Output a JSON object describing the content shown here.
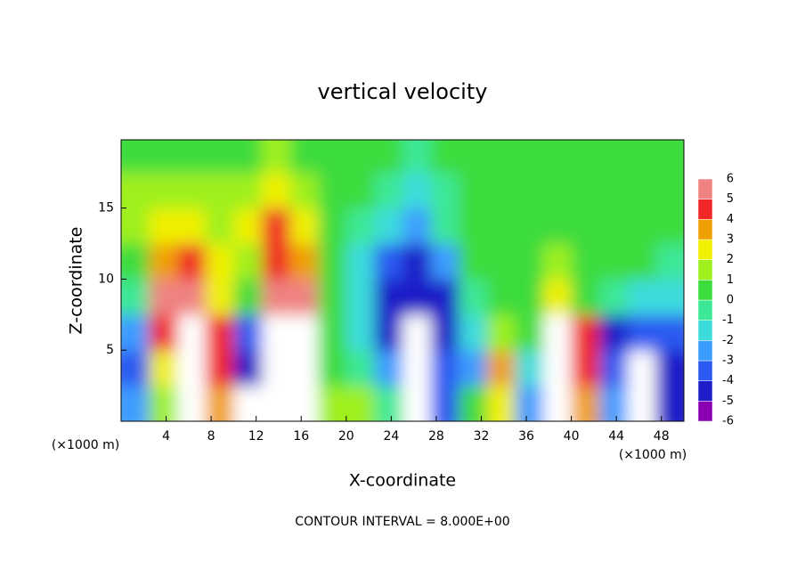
{
  "chart_data": {
    "type": "heatmap",
    "title": "vertical velocity",
    "x_label": "X-coordinate",
    "y_label": "Z-coordinate",
    "x_unit": "(×1000 m)",
    "footer": "CONTOUR INTERVAL = 8.000E+00",
    "x": [
      1.25,
      3.75,
      6.25,
      8.75,
      11.25,
      13.75,
      16.25,
      18.75,
      21.25,
      23.75,
      26.25,
      28.75,
      31.25,
      33.75,
      36.25,
      38.75,
      41.25,
      43.75,
      46.25,
      48.75
    ],
    "y": [
      1.25,
      3.75,
      6.25,
      8.75,
      11.25,
      13.75,
      16.25,
      18.75
    ],
    "values": [
      [
        -3,
        1,
        8,
        3,
        -7,
        8,
        8,
        1,
        1,
        -1,
        -7,
        -4,
        0,
        2,
        -3,
        8,
        3,
        -3,
        -7,
        -5
      ],
      [
        -4,
        2,
        8,
        4,
        -5,
        8,
        8,
        0,
        -1,
        -3,
        -7,
        -4,
        -3,
        3,
        -2,
        8,
        4,
        -4,
        -7,
        -5
      ],
      [
        -3,
        4,
        8,
        4,
        -4,
        8,
        8,
        0,
        -2,
        -5,
        -7,
        -5,
        -2,
        1,
        0,
        7,
        4,
        -5,
        -4,
        -4
      ],
      [
        -1,
        5,
        5,
        2,
        0,
        6,
        5,
        0,
        -2,
        -5,
        -5,
        -5,
        -1,
        0,
        0,
        2,
        0,
        -1,
        -2,
        -2
      ],
      [
        0,
        3,
        4,
        2,
        1,
        4,
        3,
        0,
        -2,
        -4,
        -5,
        -3,
        0,
        0,
        0,
        1,
        0,
        0,
        0,
        -1
      ],
      [
        1,
        2,
        2,
        1,
        2,
        4,
        2,
        0,
        -1,
        -2,
        -3,
        -1,
        0,
        0,
        0,
        0,
        0,
        0,
        0,
        0
      ],
      [
        1,
        1,
        1,
        1,
        1,
        2,
        1,
        0,
        0,
        -1,
        -2,
        -1,
        0,
        0,
        0,
        0,
        0,
        0,
        0,
        0
      ],
      [
        0,
        0,
        0,
        0,
        0,
        1,
        0,
        0,
        0,
        0,
        -1,
        0,
        0,
        0,
        0,
        0,
        0,
        0,
        0,
        0
      ]
    ],
    "xlim": [
      0,
      50
    ],
    "xticks": [
      4,
      8,
      12,
      16,
      20,
      24,
      28,
      32,
      36,
      40,
      44,
      48
    ],
    "ylim": [
      0,
      19.8
    ],
    "yticks": [
      5,
      10,
      15
    ],
    "colorbar": {
      "levels": [
        -6,
        -5,
        -4,
        -3,
        -2,
        -1,
        0,
        1,
        2,
        3,
        4,
        5,
        6
      ],
      "colors": [
        "#8a00b0",
        "#1e1ec8",
        "#2a5af0",
        "#3c9cff",
        "#3cdcdc",
        "#3ce896",
        "#3cdc3c",
        "#9ef01e",
        "#f0f000",
        "#f0a000",
        "#f02828",
        "#f08282"
      ]
    },
    "out_of_range_color": "#ffffff"
  }
}
